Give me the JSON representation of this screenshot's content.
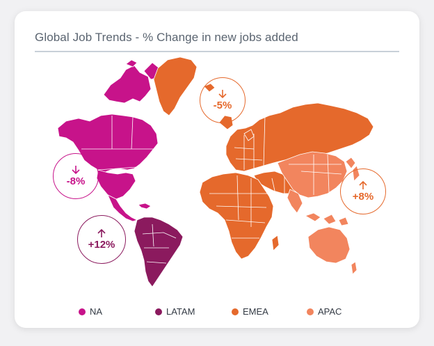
{
  "title": "Global Job Trends - % Change in new jobs added",
  "colors": {
    "NA": "#c7138a",
    "LATAM": "#8b1a5e",
    "EMEA": "#e5692c",
    "APAC": "#f2855e"
  },
  "regions": [
    {
      "key": "NA",
      "name": "NA",
      "change": "-8%",
      "direction": "down"
    },
    {
      "key": "LATAM",
      "name": "LATAM",
      "change": "+12%",
      "direction": "up"
    },
    {
      "key": "EMEA",
      "name": "EMEA",
      "change": "-5%",
      "direction": "down"
    },
    {
      "key": "APAC",
      "name": "APAC",
      "change": "+8%",
      "direction": "up"
    }
  ],
  "legend": [
    "NA",
    "LATAM",
    "EMEA",
    "APAC"
  ]
}
